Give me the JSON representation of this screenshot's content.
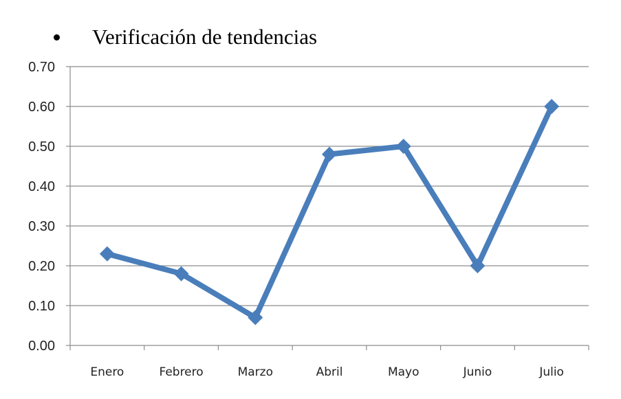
{
  "heading": {
    "bullet": "•",
    "text": "Verificación de tendencias"
  },
  "colors": {
    "series": "#4a7ebb",
    "grid": "#8c8c8c",
    "axis": "#8c8c8c",
    "text": "#222222"
  },
  "chart_data": {
    "type": "line",
    "title": "",
    "xlabel": "",
    "ylabel": "",
    "categories": [
      "Enero",
      "Febrero",
      "Marzo",
      "Abril",
      "Mayo",
      "Junio",
      "Julio"
    ],
    "series": [
      {
        "values": [
          0.23,
          0.18,
          0.07,
          0.48,
          0.5,
          0.2,
          0.6
        ]
      }
    ],
    "ylim": [
      0,
      0.7
    ],
    "y_ticks": [
      "0.00",
      "0.10",
      "0.20",
      "0.30",
      "0.40",
      "0.50",
      "0.60",
      "0.70"
    ],
    "grid": true,
    "legend": "none",
    "marker": "diamond"
  }
}
